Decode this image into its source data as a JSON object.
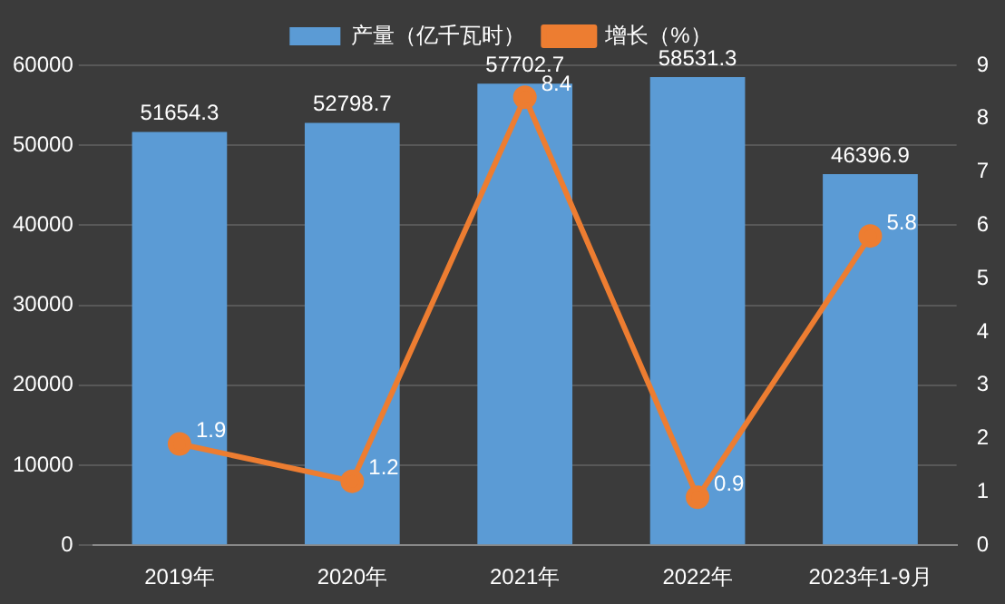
{
  "chart_data": {
    "type": "bar",
    "categories": [
      "2019年",
      "2020年",
      "2021年",
      "2022年",
      "2023年1-9月"
    ],
    "series": [
      {
        "name": "产量（亿千瓦时）",
        "color": "#5b9bd5",
        "values": [
          51654.3,
          52798.7,
          57702.7,
          58531.3,
          46396.9
        ]
      },
      {
        "name": "增长（%）",
        "type": "line",
        "axis": "y2",
        "color": "#ed7d31",
        "values": [
          1.9,
          1.2,
          8.4,
          0.9,
          5.8
        ]
      }
    ],
    "ylim": [
      0,
      60000
    ],
    "yticks": [
      0,
      10000,
      20000,
      30000,
      40000,
      50000,
      60000
    ],
    "y2lim": [
      0,
      9
    ],
    "y2ticks": [
      0,
      1,
      2,
      3,
      4,
      5,
      6,
      7,
      8,
      9
    ],
    "grid": "y",
    "legend": "top",
    "marker": "circle",
    "line_style": "solid",
    "data_labels": true
  }
}
